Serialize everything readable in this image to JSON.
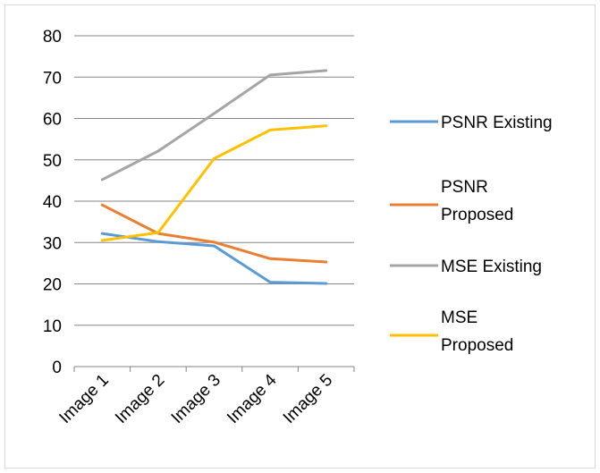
{
  "chart_data": {
    "type": "line",
    "title": "",
    "xlabel": "",
    "ylabel": "",
    "categories": [
      "Image 1",
      "Image 2",
      "Image 3",
      "Image 4",
      "Image 5"
    ],
    "ylim": [
      0,
      80
    ],
    "yticks": [
      0,
      10,
      20,
      30,
      40,
      50,
      60,
      70,
      80
    ],
    "grid": true,
    "legend_position": "right",
    "series": [
      {
        "name": "PSNR Existing",
        "color": "#5b9bd5",
        "values": [
          32.2,
          30.2,
          29.2,
          20.4,
          20.1
        ]
      },
      {
        "name": "PSNR Proposed",
        "color": "#ed7d31",
        "values": [
          39.1,
          32.2,
          30.1,
          26.1,
          25.3
        ]
      },
      {
        "name": "MSE Existing",
        "color": "#a5a5a5",
        "values": [
          45.2,
          52.1,
          61.2,
          70.5,
          71.6
        ]
      },
      {
        "name": "MSE Proposed",
        "color": "#ffc000",
        "values": [
          30.5,
          32.4,
          50.3,
          57.2,
          58.2
        ]
      }
    ]
  }
}
